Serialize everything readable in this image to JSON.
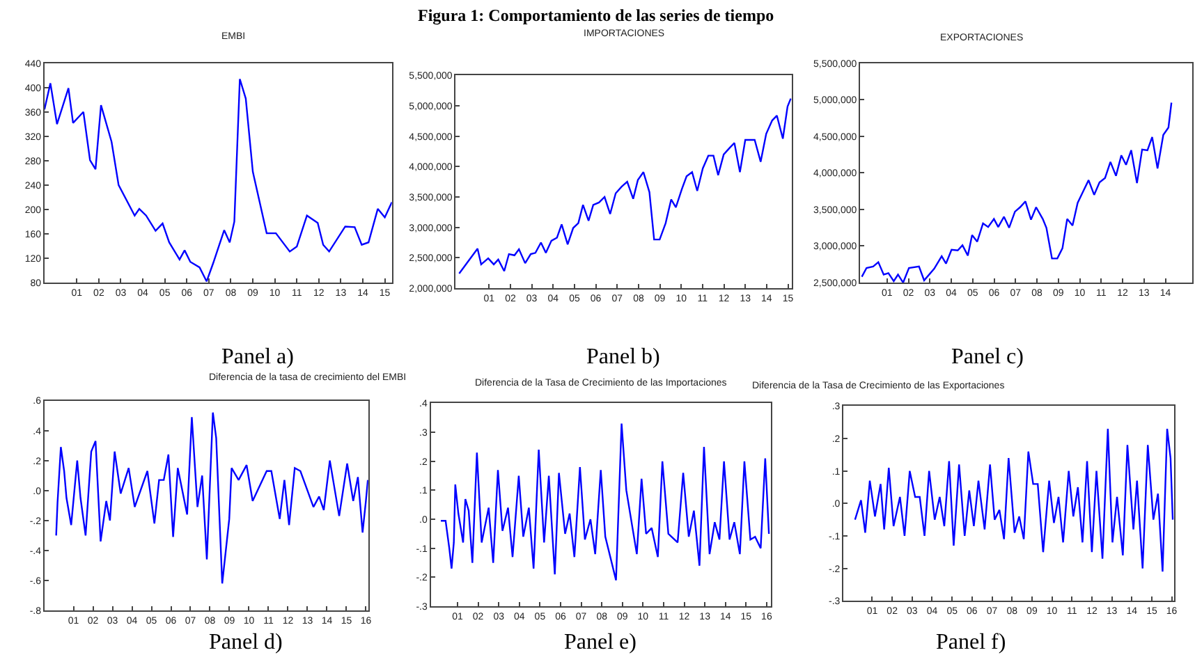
{
  "chart_data": [
    {
      "type": "line",
      "title": "EMBI",
      "annotations": [
        "Figura 1: Comportamiento de las series de tiempo",
        "Panel a)"
      ],
      "grid": false,
      "xlim": [
        1999.53,
        2015.32
      ],
      "xticks": [
        {
          "value": 2001,
          "label": "01"
        },
        {
          "value": 2002,
          "label": "02"
        },
        {
          "value": 2003,
          "label": "03"
        },
        {
          "value": 2004,
          "label": "04"
        },
        {
          "value": 2005,
          "label": "05"
        },
        {
          "value": 2006,
          "label": "06"
        },
        {
          "value": 2007,
          "label": "07"
        },
        {
          "value": 2008,
          "label": "08"
        },
        {
          "value": 2009,
          "label": "09"
        },
        {
          "value": 2010,
          "label": "10"
        },
        {
          "value": 2011,
          "label": "11"
        },
        {
          "value": 2012,
          "label": "12"
        },
        {
          "value": 2013,
          "label": "13"
        },
        {
          "value": 2014,
          "label": "14"
        },
        {
          "value": 2015,
          "label": "15"
        }
      ],
      "ylim": [
        80,
        440
      ],
      "yticks": [
        80,
        120,
        160,
        200,
        240,
        280,
        320,
        360,
        400,
        440
      ],
      "series": [
        {
          "color": "#0000ff",
          "x": [
            1999.53,
            1999.8,
            2000.1,
            2000.62,
            2000.83,
            2001.3,
            2001.6,
            2001.85,
            2002.1,
            2002.58,
            2002.9,
            2003.63,
            2003.84,
            2004.15,
            2004.58,
            2004.9,
            2005.2,
            2005.67,
            2005.9,
            2006.16,
            2006.58,
            2006.9,
            2007.2,
            2007.7,
            2007.95,
            2008.16,
            2008.41,
            2008.68,
            2009.0,
            2009.63,
            2010.05,
            2010.68,
            2011.0,
            2011.46,
            2011.95,
            2012.2,
            2012.47,
            2013.2,
            2013.63,
            2013.95,
            2014.26,
            2014.68,
            2015.0,
            2015.32
          ],
          "values": [
            364,
            407,
            340,
            399,
            342,
            360,
            281,
            266,
            371,
            311,
            240,
            190,
            201,
            190,
            165,
            177,
            146,
            118,
            133,
            114,
            105,
            82,
            112,
            166,
            146,
            180,
            414,
            382,
            262,
            161,
            161,
            131,
            139,
            190,
            178,
            142,
            131,
            172,
            171,
            142,
            146,
            201,
            187,
            212
          ]
        }
      ]
    },
    {
      "type": "line",
      "title": "IMPORTACIONES",
      "annotations": [
        "Panel b)"
      ],
      "grid": false,
      "xlim": [
        1999.44,
        2015.19
      ],
      "xticks": [
        {
          "value": 2001,
          "label": "01"
        },
        {
          "value": 2002,
          "label": "02"
        },
        {
          "value": 2003,
          "label": "03"
        },
        {
          "value": 2004,
          "label": "04"
        },
        {
          "value": 2005,
          "label": "05"
        },
        {
          "value": 2006,
          "label": "06"
        },
        {
          "value": 2007,
          "label": "07"
        },
        {
          "value": 2008,
          "label": "08"
        },
        {
          "value": 2009,
          "label": "09"
        },
        {
          "value": 2010,
          "label": "10"
        },
        {
          "value": 2011,
          "label": "11"
        },
        {
          "value": 2012,
          "label": "12"
        },
        {
          "value": 2013,
          "label": "13"
        },
        {
          "value": 2014,
          "label": "14"
        },
        {
          "value": 2015,
          "label": "15"
        }
      ],
      "ylim": [
        2000000,
        5500000
      ],
      "yticks": [
        {
          "value": 2000000,
          "label": "2,000,000"
        },
        {
          "value": 2500000,
          "label": "2,500,000"
        },
        {
          "value": 3000000,
          "label": "3,000,000"
        },
        {
          "value": 3500000,
          "label": "3,500,000"
        },
        {
          "value": 4000000,
          "label": "4,000,000"
        },
        {
          "value": 4500000,
          "label": "4,500,000"
        },
        {
          "value": 5000000,
          "label": "5,000,000"
        },
        {
          "value": 5500000,
          "label": "5,500,000"
        }
      ],
      "series": [
        {
          "color": "#0000ff",
          "x": [
            1999.6,
            2000.46,
            2000.63,
            2000.96,
            2001.22,
            2001.43,
            2001.71,
            2001.93,
            2002.19,
            2002.4,
            2002.69,
            2002.95,
            2003.17,
            2003.43,
            2003.66,
            2003.92,
            2004.18,
            2004.4,
            2004.68,
            2004.94,
            2005.18,
            2005.4,
            2005.66,
            2005.88,
            2006.15,
            2006.41,
            2006.67,
            2006.93,
            2007.21,
            2007.47,
            2007.75,
            2007.97,
            2008.23,
            2008.51,
            2008.73,
            2008.99,
            2009.27,
            2009.53,
            2009.75,
            2010.03,
            2010.25,
            2010.51,
            2010.75,
            2011.01,
            2011.27,
            2011.51,
            2011.73,
            2011.99,
            2012.27,
            2012.49,
            2012.75,
            2013.0,
            2013.44,
            2013.72,
            2013.98,
            2014.26,
            2014.48,
            2014.76,
            2014.98,
            2015.13
          ],
          "values": [
            2240000,
            2650000,
            2390000,
            2490000,
            2390000,
            2470000,
            2280000,
            2560000,
            2540000,
            2640000,
            2410000,
            2560000,
            2580000,
            2750000,
            2580000,
            2780000,
            2830000,
            3050000,
            2720000,
            2990000,
            3070000,
            3370000,
            3110000,
            3370000,
            3410000,
            3500000,
            3220000,
            3560000,
            3670000,
            3750000,
            3470000,
            3780000,
            3910000,
            3580000,
            2800000,
            2800000,
            3070000,
            3460000,
            3330000,
            3630000,
            3840000,
            3910000,
            3600000,
            3970000,
            4180000,
            4180000,
            3860000,
            4200000,
            4310000,
            4390000,
            3910000,
            4440000,
            4440000,
            4080000,
            4540000,
            4760000,
            4840000,
            4460000,
            4990000,
            5120000
          ]
        }
      ]
    },
    {
      "type": "line",
      "title": "EXPORTACIONES",
      "annotations": [
        "Panel c)"
      ],
      "grid": false,
      "xlim": [
        1999.74,
        2015.25
      ],
      "xticks": [
        {
          "value": 2001,
          "label": "01"
        },
        {
          "value": 2002,
          "label": "02"
        },
        {
          "value": 2003,
          "label": "03"
        },
        {
          "value": 2004,
          "label": "04"
        },
        {
          "value": 2005,
          "label": "05"
        },
        {
          "value": 2006,
          "label": "06"
        },
        {
          "value": 2007,
          "label": "07"
        },
        {
          "value": 2008,
          "label": "08"
        },
        {
          "value": 2009,
          "label": "09"
        },
        {
          "value": 2010,
          "label": "10"
        },
        {
          "value": 2011,
          "label": "11"
        },
        {
          "value": 2012,
          "label": "12"
        },
        {
          "value": 2013,
          "label": "13"
        },
        {
          "value": 2014,
          "label": "14"
        }
      ],
      "ylim": [
        2500000,
        5500000
      ],
      "yticks": [
        {
          "value": 2500000,
          "label": "2,500,000"
        },
        {
          "value": 3000000,
          "label": "3,000,000"
        },
        {
          "value": 3500000,
          "label": "3,500,000"
        },
        {
          "value": 4000000,
          "label": "4,000,000"
        },
        {
          "value": 4500000,
          "label": "4,500,000"
        },
        {
          "value": 5000000,
          "label": "5,000,000"
        },
        {
          "value": 5500000,
          "label": "5,500,000"
        }
      ],
      "series": [
        {
          "color": "#0000ff",
          "x": [
            1999.82,
            2000.04,
            2000.35,
            2000.59,
            2000.84,
            2001.06,
            2001.31,
            2001.51,
            2001.75,
            2002.02,
            2002.49,
            2002.73,
            2003.2,
            2003.55,
            2003.75,
            2004.01,
            2004.3,
            2004.52,
            2004.77,
            2004.97,
            2005.21,
            2005.48,
            2005.72,
            2005.99,
            2006.19,
            2006.46,
            2006.7,
            2006.97,
            2007.21,
            2007.46,
            2007.72,
            2007.96,
            2008.27,
            2008.44,
            2008.7,
            2008.95,
            2009.19,
            2009.41,
            2009.66,
            2009.9,
            2010.16,
            2010.41,
            2010.67,
            2010.92,
            2011.18,
            2011.43,
            2011.69,
            2011.94,
            2012.16,
            2012.4,
            2012.67,
            2012.91,
            2013.16,
            2013.38,
            2013.63,
            2013.9,
            2014.14,
            2014.28
          ],
          "values": [
            2580000,
            2700000,
            2720000,
            2780000,
            2610000,
            2630000,
            2520000,
            2610000,
            2500000,
            2700000,
            2720000,
            2530000,
            2690000,
            2860000,
            2760000,
            2950000,
            2940000,
            3010000,
            2870000,
            3150000,
            3060000,
            3310000,
            3260000,
            3370000,
            3260000,
            3400000,
            3250000,
            3470000,
            3530000,
            3610000,
            3360000,
            3530000,
            3370000,
            3250000,
            2830000,
            2830000,
            2970000,
            3370000,
            3280000,
            3590000,
            3750000,
            3900000,
            3700000,
            3870000,
            3930000,
            4150000,
            3960000,
            4240000,
            4110000,
            4310000,
            3860000,
            4320000,
            4310000,
            4490000,
            4060000,
            4520000,
            4620000,
            4960000
          ]
        }
      ]
    },
    {
      "type": "line",
      "title": "Diferencia de la tasa de crecimiento del EMBI",
      "annotations": [
        "Panel d)"
      ],
      "grid": false,
      "xlim": [
        1999.51,
        2016.12
      ],
      "xticks": [
        {
          "value": 2001,
          "label": "01"
        },
        {
          "value": 2002,
          "label": "02"
        },
        {
          "value": 2003,
          "label": "03"
        },
        {
          "value": 2004,
          "label": "04"
        },
        {
          "value": 2005,
          "label": "05"
        },
        {
          "value": 2006,
          "label": "06"
        },
        {
          "value": 2007,
          "label": "07"
        },
        {
          "value": 2008,
          "label": "08"
        },
        {
          "value": 2009,
          "label": "09"
        },
        {
          "value": 2010,
          "label": "10"
        },
        {
          "value": 2011,
          "label": "11"
        },
        {
          "value": 2012,
          "label": "12"
        },
        {
          "value": 2013,
          "label": "13"
        },
        {
          "value": 2014,
          "label": "14"
        },
        {
          "value": 2015,
          "label": "15"
        },
        {
          "value": 2016,
          "label": "16"
        }
      ],
      "ylim": [
        -0.8,
        0.6
      ],
      "yticks": [
        {
          "value": -0.8,
          "label": "-.8"
        },
        {
          "value": -0.6,
          "label": "-.6"
        },
        {
          "value": -0.4,
          "label": "-.4"
        },
        {
          "value": -0.2,
          "label": "-.2"
        },
        {
          "value": 0,
          "label": ".0"
        },
        {
          "value": 0.2,
          "label": ".2"
        },
        {
          "value": 0.4,
          "label": ".4"
        },
        {
          "value": 0.6,
          "label": ".6"
        }
      ],
      "series": [
        {
          "color": "#0000ff",
          "x": [
            2000.11,
            2000.18,
            2000.35,
            2000.52,
            2000.64,
            2000.88,
            2001.19,
            2001.36,
            2001.62,
            2001.91,
            2002.13,
            2002.39,
            2002.68,
            2002.87,
            2003.11,
            2003.42,
            2003.83,
            2004.14,
            2004.79,
            2005.15,
            2005.39,
            2005.63,
            2005.87,
            2006.11,
            2006.35,
            2006.83,
            2007.07,
            2007.36,
            2007.6,
            2007.84,
            2008.15,
            2008.32,
            2008.63,
            2008.99,
            2009.11,
            2009.47,
            2009.88,
            2010.19,
            2010.91,
            2011.15,
            2011.58,
            2011.82,
            2012.06,
            2012.35,
            2012.64,
            2013.31,
            2013.6,
            2013.84,
            2014.15,
            2014.63,
            2015.04,
            2015.35,
            2015.59,
            2015.83,
            2016.0,
            2016.1
          ],
          "values": [
            -0.3,
            -0.08,
            0.29,
            0.13,
            -0.05,
            -0.23,
            0.2,
            -0.05,
            -0.3,
            0.26,
            0.33,
            -0.34,
            -0.07,
            -0.2,
            0.26,
            -0.02,
            0.15,
            -0.11,
            0.13,
            -0.22,
            0.07,
            0.07,
            0.24,
            -0.31,
            0.15,
            -0.16,
            0.49,
            -0.11,
            0.1,
            -0.46,
            0.52,
            0.35,
            -0.62,
            -0.19,
            0.15,
            0.07,
            0.17,
            -0.07,
            0.13,
            0.13,
            -0.19,
            0.07,
            -0.23,
            0.15,
            0.13,
            -0.11,
            -0.04,
            -0.13,
            0.2,
            -0.17,
            0.18,
            -0.07,
            0.09,
            -0.28,
            -0.07,
            0.07
          ]
        }
      ]
    },
    {
      "type": "line",
      "title": "Diferencia de la Tasa de Crecimiento de las Importaciones",
      "annotations": [
        "Panel e)"
      ],
      "grid": false,
      "xlim": [
        1999.7,
        2016.22
      ],
      "xticks": [
        {
          "value": 2001,
          "label": "01"
        },
        {
          "value": 2002,
          "label": "02"
        },
        {
          "value": 2003,
          "label": "03"
        },
        {
          "value": 2004,
          "label": "04"
        },
        {
          "value": 2005,
          "label": "05"
        },
        {
          "value": 2006,
          "label": "06"
        },
        {
          "value": 2007,
          "label": "07"
        },
        {
          "value": 2008,
          "label": "08"
        },
        {
          "value": 2009,
          "label": "09"
        },
        {
          "value": 2010,
          "label": "10"
        },
        {
          "value": 2011,
          "label": "11"
        },
        {
          "value": 2012,
          "label": "12"
        },
        {
          "value": 2013,
          "label": "13"
        },
        {
          "value": 2014,
          "label": "14"
        },
        {
          "value": 2015,
          "label": "15"
        },
        {
          "value": 2016,
          "label": "16"
        }
      ],
      "ylim": [
        -0.3,
        0.4
      ],
      "yticks": [
        {
          "value": -0.3,
          "label": "-.3"
        },
        {
          "value": -0.2,
          "label": "-.2"
        },
        {
          "value": -0.1,
          "label": "-.1"
        },
        {
          "value": 0,
          "label": ".0"
        },
        {
          "value": 0.1,
          "label": ".1"
        },
        {
          "value": 0.2,
          "label": ".2"
        },
        {
          "value": 0.3,
          "label": ".3"
        },
        {
          "value": 0.4,
          "label": ".4"
        }
      ],
      "series": [
        {
          "color": "#0000ff",
          "x": [
            2000.19,
            2000.42,
            2000.6,
            2000.71,
            2000.82,
            2000.89,
            2001.04,
            2001.27,
            2001.38,
            2001.54,
            2001.72,
            2001.94,
            2002.17,
            2002.51,
            2002.73,
            2002.96,
            2003.18,
            2003.45,
            2003.67,
            2003.97,
            2004.19,
            2004.46,
            2004.69,
            2004.94,
            2005.2,
            2005.43,
            2005.72,
            2005.92,
            2006.22,
            2006.44,
            2006.67,
            2006.94,
            2007.18,
            2007.45,
            2007.68,
            2007.95,
            2008.17,
            2008.69,
            2008.96,
            2009.19,
            2009.7,
            2009.93,
            2010.15,
            2010.42,
            2010.72,
            2010.94,
            2011.23,
            2011.68,
            2011.95,
            2012.22,
            2012.47,
            2012.74,
            2012.96,
            2013.23,
            2013.48,
            2013.71,
            2013.93,
            2014.2,
            2014.43,
            2014.7,
            2014.92,
            2015.21,
            2015.44,
            2015.71,
            2015.93,
            2016.11
          ],
          "values": [
            -0.005,
            -0.005,
            -0.1,
            -0.17,
            -0.08,
            0.12,
            0.02,
            -0.08,
            0.07,
            0.03,
            -0.15,
            0.23,
            -0.08,
            0.04,
            -0.15,
            0.17,
            -0.04,
            0.04,
            -0.13,
            0.15,
            -0.06,
            0.04,
            -0.17,
            0.24,
            -0.08,
            0.15,
            -0.19,
            0.16,
            -0.05,
            0.02,
            -0.13,
            0.18,
            -0.07,
            0.0,
            -0.12,
            0.17,
            -0.06,
            -0.21,
            0.33,
            0.1,
            -0.12,
            0.14,
            -0.05,
            -0.03,
            -0.13,
            0.2,
            -0.05,
            -0.08,
            0.16,
            -0.06,
            0.03,
            -0.16,
            0.25,
            -0.12,
            -0.01,
            -0.07,
            0.2,
            -0.07,
            -0.01,
            -0.12,
            0.2,
            -0.07,
            -0.06,
            -0.1,
            0.21,
            -0.05
          ]
        }
      ]
    },
    {
      "type": "line",
      "title": "Diferencia de la Tasa de Crecimiento de las Exportaciones",
      "annotations": [
        "Panel f)"
      ],
      "grid": false,
      "xlim": [
        1999.56,
        2016.12
      ],
      "xticks": [
        {
          "value": 2001,
          "label": "01"
        },
        {
          "value": 2002,
          "label": "02"
        },
        {
          "value": 2003,
          "label": "03"
        },
        {
          "value": 2004,
          "label": "04"
        },
        {
          "value": 2005,
          "label": "05"
        },
        {
          "value": 2006,
          "label": "06"
        },
        {
          "value": 2007,
          "label": "07"
        },
        {
          "value": 2008,
          "label": "08"
        },
        {
          "value": 2009,
          "label": "09"
        },
        {
          "value": 2010,
          "label": "10"
        },
        {
          "value": 2011,
          "label": "11"
        },
        {
          "value": 2012,
          "label": "12"
        },
        {
          "value": 2013,
          "label": "13"
        },
        {
          "value": 2014,
          "label": "14"
        },
        {
          "value": 2015,
          "label": "15"
        },
        {
          "value": 2016,
          "label": "16"
        }
      ],
      "ylim": [
        -0.3,
        0.3
      ],
      "yticks": [
        {
          "value": -0.3,
          "label": "-.3"
        },
        {
          "value": -0.2,
          "label": "-.2"
        },
        {
          "value": -0.1,
          "label": "-.1"
        },
        {
          "value": 0,
          "label": ".0"
        },
        {
          "value": 0.1,
          "label": ".1"
        },
        {
          "value": 0.2,
          "label": ".2"
        },
        {
          "value": 0.3,
          "label": ".3"
        }
      ],
      "series": [
        {
          "color": "#0000ff",
          "x": [
            2000.14,
            2000.44,
            2000.65,
            2000.88,
            2001.14,
            2001.42,
            2001.6,
            2001.83,
            2002.07,
            2002.39,
            2002.62,
            2002.88,
            2003.15,
            2003.38,
            2003.62,
            2003.85,
            2004.13,
            2004.38,
            2004.61,
            2004.85,
            2005.08,
            2005.35,
            2005.63,
            2005.86,
            2006.09,
            2006.32,
            2006.63,
            2006.9,
            2007.13,
            2007.37,
            2007.6,
            2007.83,
            2008.13,
            2008.36,
            2008.59,
            2008.82,
            2009.06,
            2009.29,
            2009.56,
            2009.86,
            2010.1,
            2010.33,
            2010.56,
            2010.84,
            2011.07,
            2011.3,
            2011.53,
            2011.76,
            2012.0,
            2012.23,
            2012.53,
            2012.8,
            2013.03,
            2013.26,
            2013.55,
            2013.78,
            2014.08,
            2014.26,
            2014.54,
            2014.8,
            2015.08,
            2015.31,
            2015.54,
            2015.77,
            2015.94,
            2016.05
          ],
          "values": [
            -0.05,
            0.01,
            -0.09,
            0.07,
            -0.04,
            0.06,
            -0.08,
            0.11,
            -0.07,
            0.02,
            -0.1,
            0.1,
            0.02,
            0.02,
            -0.1,
            0.1,
            -0.05,
            0.02,
            -0.07,
            0.13,
            -0.13,
            0.12,
            -0.1,
            0.04,
            -0.07,
            0.07,
            -0.08,
            0.12,
            -0.05,
            -0.02,
            -0.11,
            0.14,
            -0.09,
            -0.04,
            -0.11,
            0.16,
            0.06,
            0.06,
            -0.15,
            0.07,
            -0.06,
            0.02,
            -0.12,
            0.1,
            -0.04,
            0.05,
            -0.12,
            0.13,
            -0.15,
            0.1,
            -0.17,
            0.23,
            -0.12,
            0.02,
            -0.16,
            0.18,
            -0.08,
            0.07,
            -0.2,
            0.18,
            -0.05,
            0.03,
            -0.21,
            0.23,
            0.14,
            -0.05
          ]
        }
      ]
    }
  ]
}
